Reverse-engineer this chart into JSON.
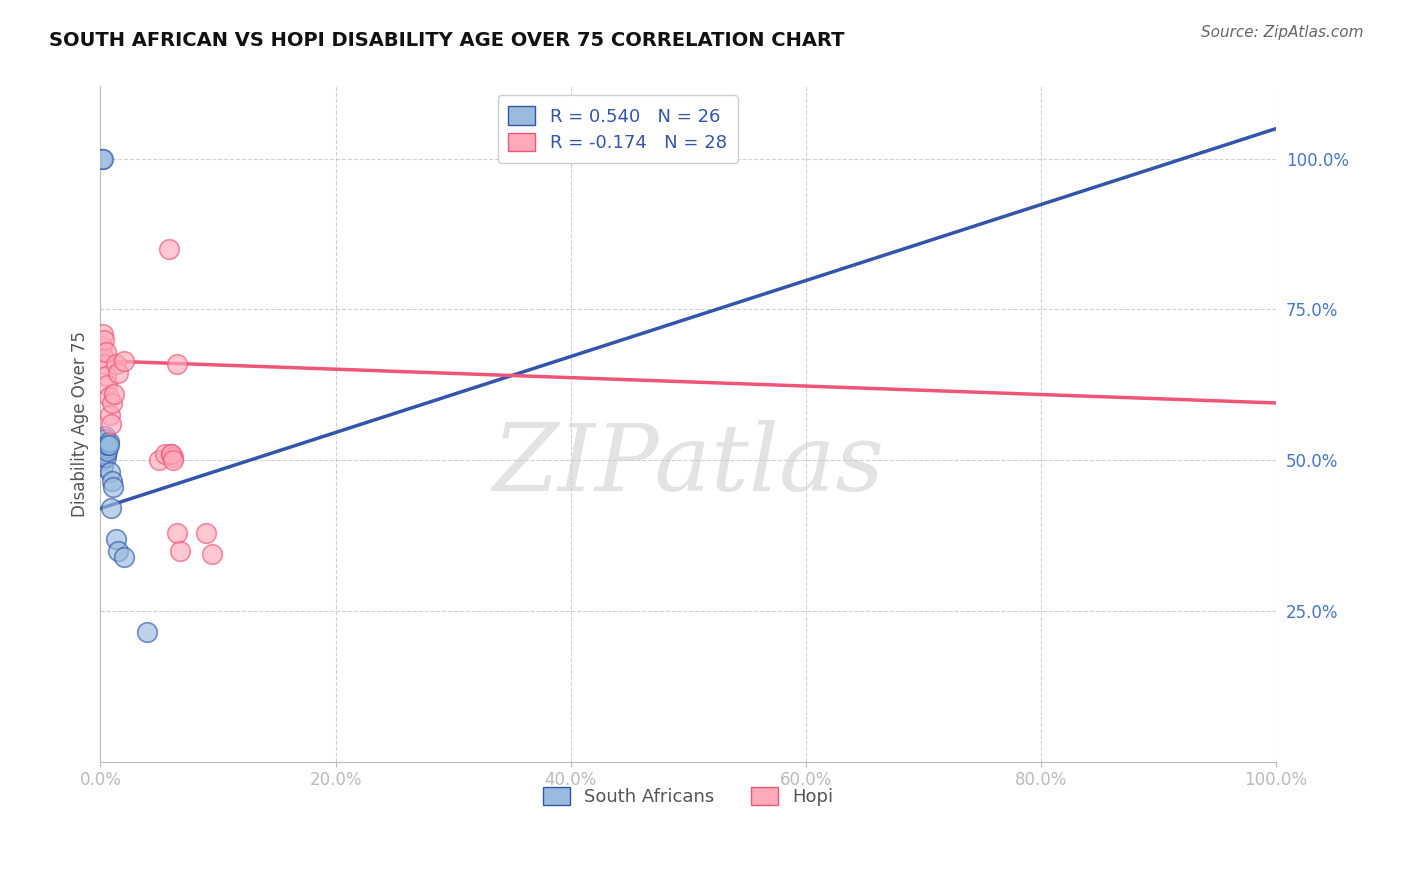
{
  "title": "SOUTH AFRICAN VS HOPI DISABILITY AGE OVER 75 CORRELATION CHART",
  "source": "Source: ZipAtlas.com",
  "ylabel": "Disability Age Over 75",
  "r_sa": 0.54,
  "n_sa": 26,
  "r_hopi": -0.174,
  "n_hopi": 28,
  "sa_x": [
    0.001,
    0.001,
    0.002,
    0.002,
    0.003,
    0.003,
    0.003,
    0.004,
    0.004,
    0.005,
    0.005,
    0.006,
    0.006,
    0.006,
    0.007,
    0.007,
    0.008,
    0.009,
    0.01,
    0.011,
    0.013,
    0.015,
    0.02,
    0.04,
    0.001,
    0.002
  ],
  "sa_y": [
    0.5,
    0.51,
    0.52,
    0.49,
    0.51,
    0.505,
    0.53,
    0.54,
    0.535,
    0.51,
    0.505,
    0.52,
    0.515,
    0.525,
    0.53,
    0.525,
    0.48,
    0.42,
    0.465,
    0.455,
    0.37,
    0.35,
    0.34,
    0.215,
    1.0,
    1.0
  ],
  "hopi_x": [
    0.001,
    0.002,
    0.003,
    0.003,
    0.004,
    0.005,
    0.005,
    0.006,
    0.007,
    0.008,
    0.009,
    0.01,
    0.012,
    0.013,
    0.015,
    0.02,
    0.05,
    0.055,
    0.058,
    0.06,
    0.062,
    0.065,
    0.06,
    0.062,
    0.065,
    0.068,
    0.09,
    0.095
  ],
  "hopi_y": [
    0.69,
    0.71,
    0.67,
    0.7,
    0.66,
    0.64,
    0.68,
    0.625,
    0.605,
    0.575,
    0.56,
    0.595,
    0.61,
    0.66,
    0.645,
    0.665,
    0.5,
    0.51,
    0.85,
    0.51,
    0.505,
    0.66,
    0.51,
    0.5,
    0.38,
    0.35,
    0.38,
    0.345
  ],
  "sa_line_x0": 0.0,
  "sa_line_y0": 0.42,
  "sa_line_x1": 1.0,
  "sa_line_y1": 1.05,
  "hopi_line_x0": 0.0,
  "hopi_line_y0": 0.665,
  "hopi_line_x1": 1.0,
  "hopi_line_y1": 0.595,
  "xlim": [
    0.0,
    1.0
  ],
  "ylim": [
    0.0,
    1.12
  ],
  "xticks": [
    0.0,
    0.2,
    0.4,
    0.6,
    0.8,
    1.0
  ],
  "xtick_labels": [
    "0.0%",
    "20.0%",
    "40.0%",
    "60.0%",
    "80.0%",
    "100.0%"
  ],
  "yticks": [
    0.25,
    0.5,
    0.75,
    1.0
  ],
  "ytick_labels": [
    "25.0%",
    "50.0%",
    "75.0%",
    "100.0%"
  ],
  "color_blue": "#99BBDD",
  "color_pink": "#FFAABB",
  "line_color_blue": "#3355AA",
  "line_color_pink": "#EE5577",
  "watermark": "ZIPatlas",
  "bg_color": "#FFFFFF",
  "tick_color": "#4477CC",
  "legend_label_sa": "South Africans",
  "legend_label_hopi": "Hopi",
  "title_fontsize": 14,
  "source_fontsize": 11,
  "tick_fontsize": 12,
  "legend_fontsize": 13
}
